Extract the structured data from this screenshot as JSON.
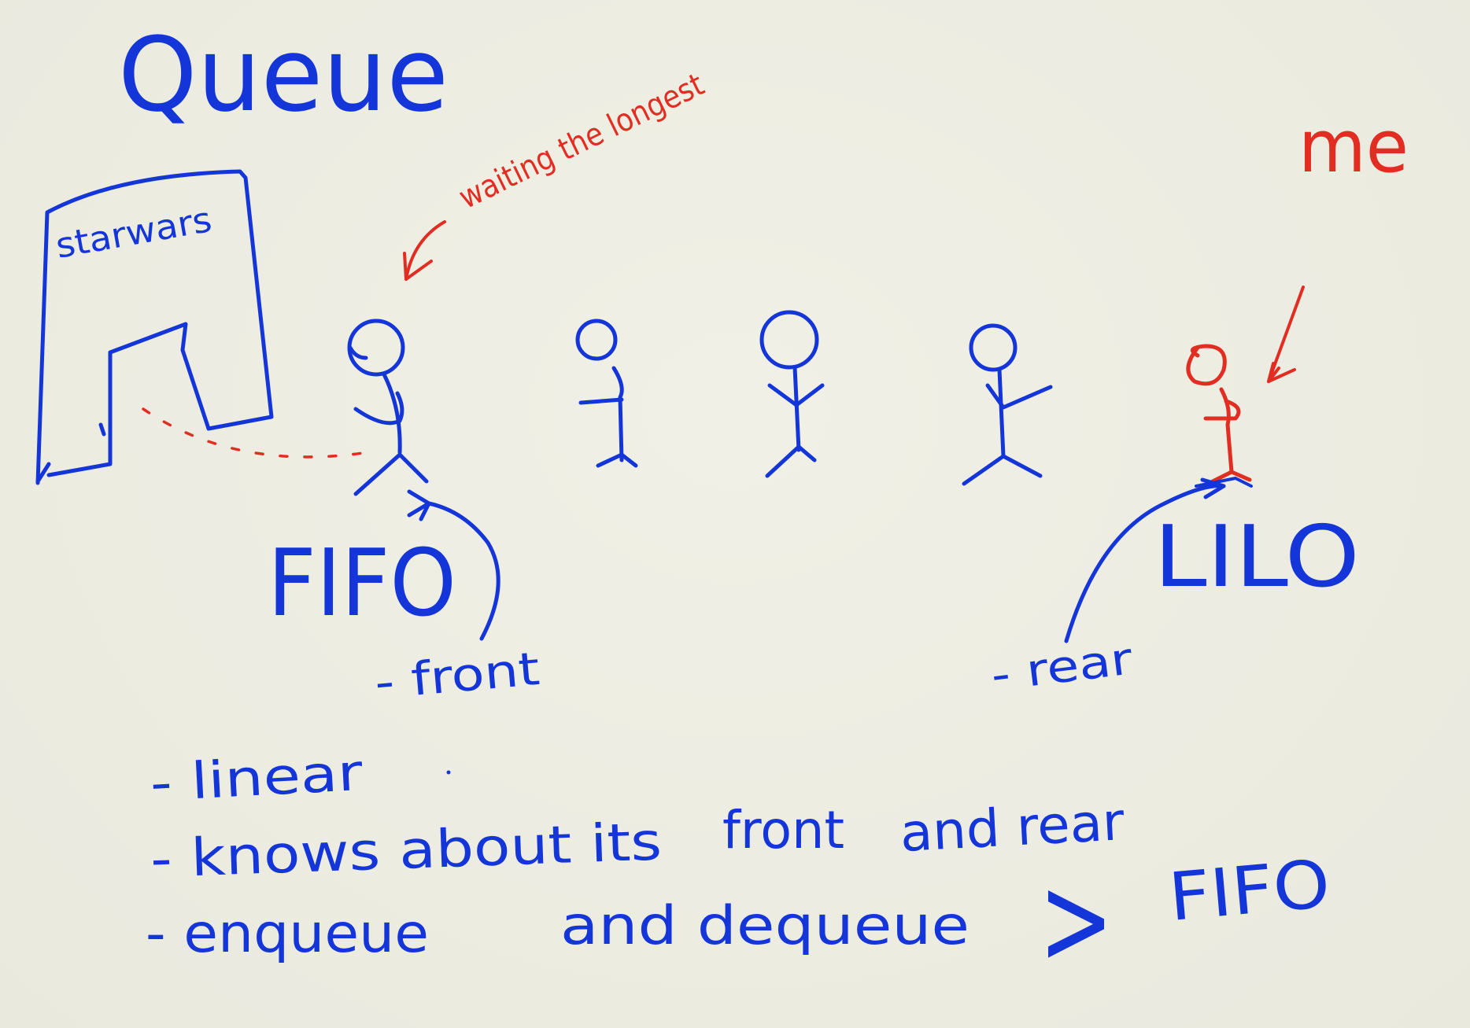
{
  "title": "Queue",
  "sign_label": "starwars",
  "annotation_waiting": "waiting the longest",
  "annotation_me": "me",
  "label_fifo": "FIFO",
  "label_lilo": "LILO",
  "label_front": "- front",
  "label_rear": "- rear",
  "bullets": {
    "linear": "- linear",
    "knows": "- knows about its",
    "knows_front": "front",
    "knows_and_rear": "and rear",
    "enqueue": "- enqueue",
    "and_dequeue": "and dequeue",
    "arrow_glyph": ">",
    "fifo": "FIFO"
  },
  "colors": {
    "blue_ink": "#1436d8",
    "red_ink": "#e22d22",
    "paper": "#ecece2"
  }
}
